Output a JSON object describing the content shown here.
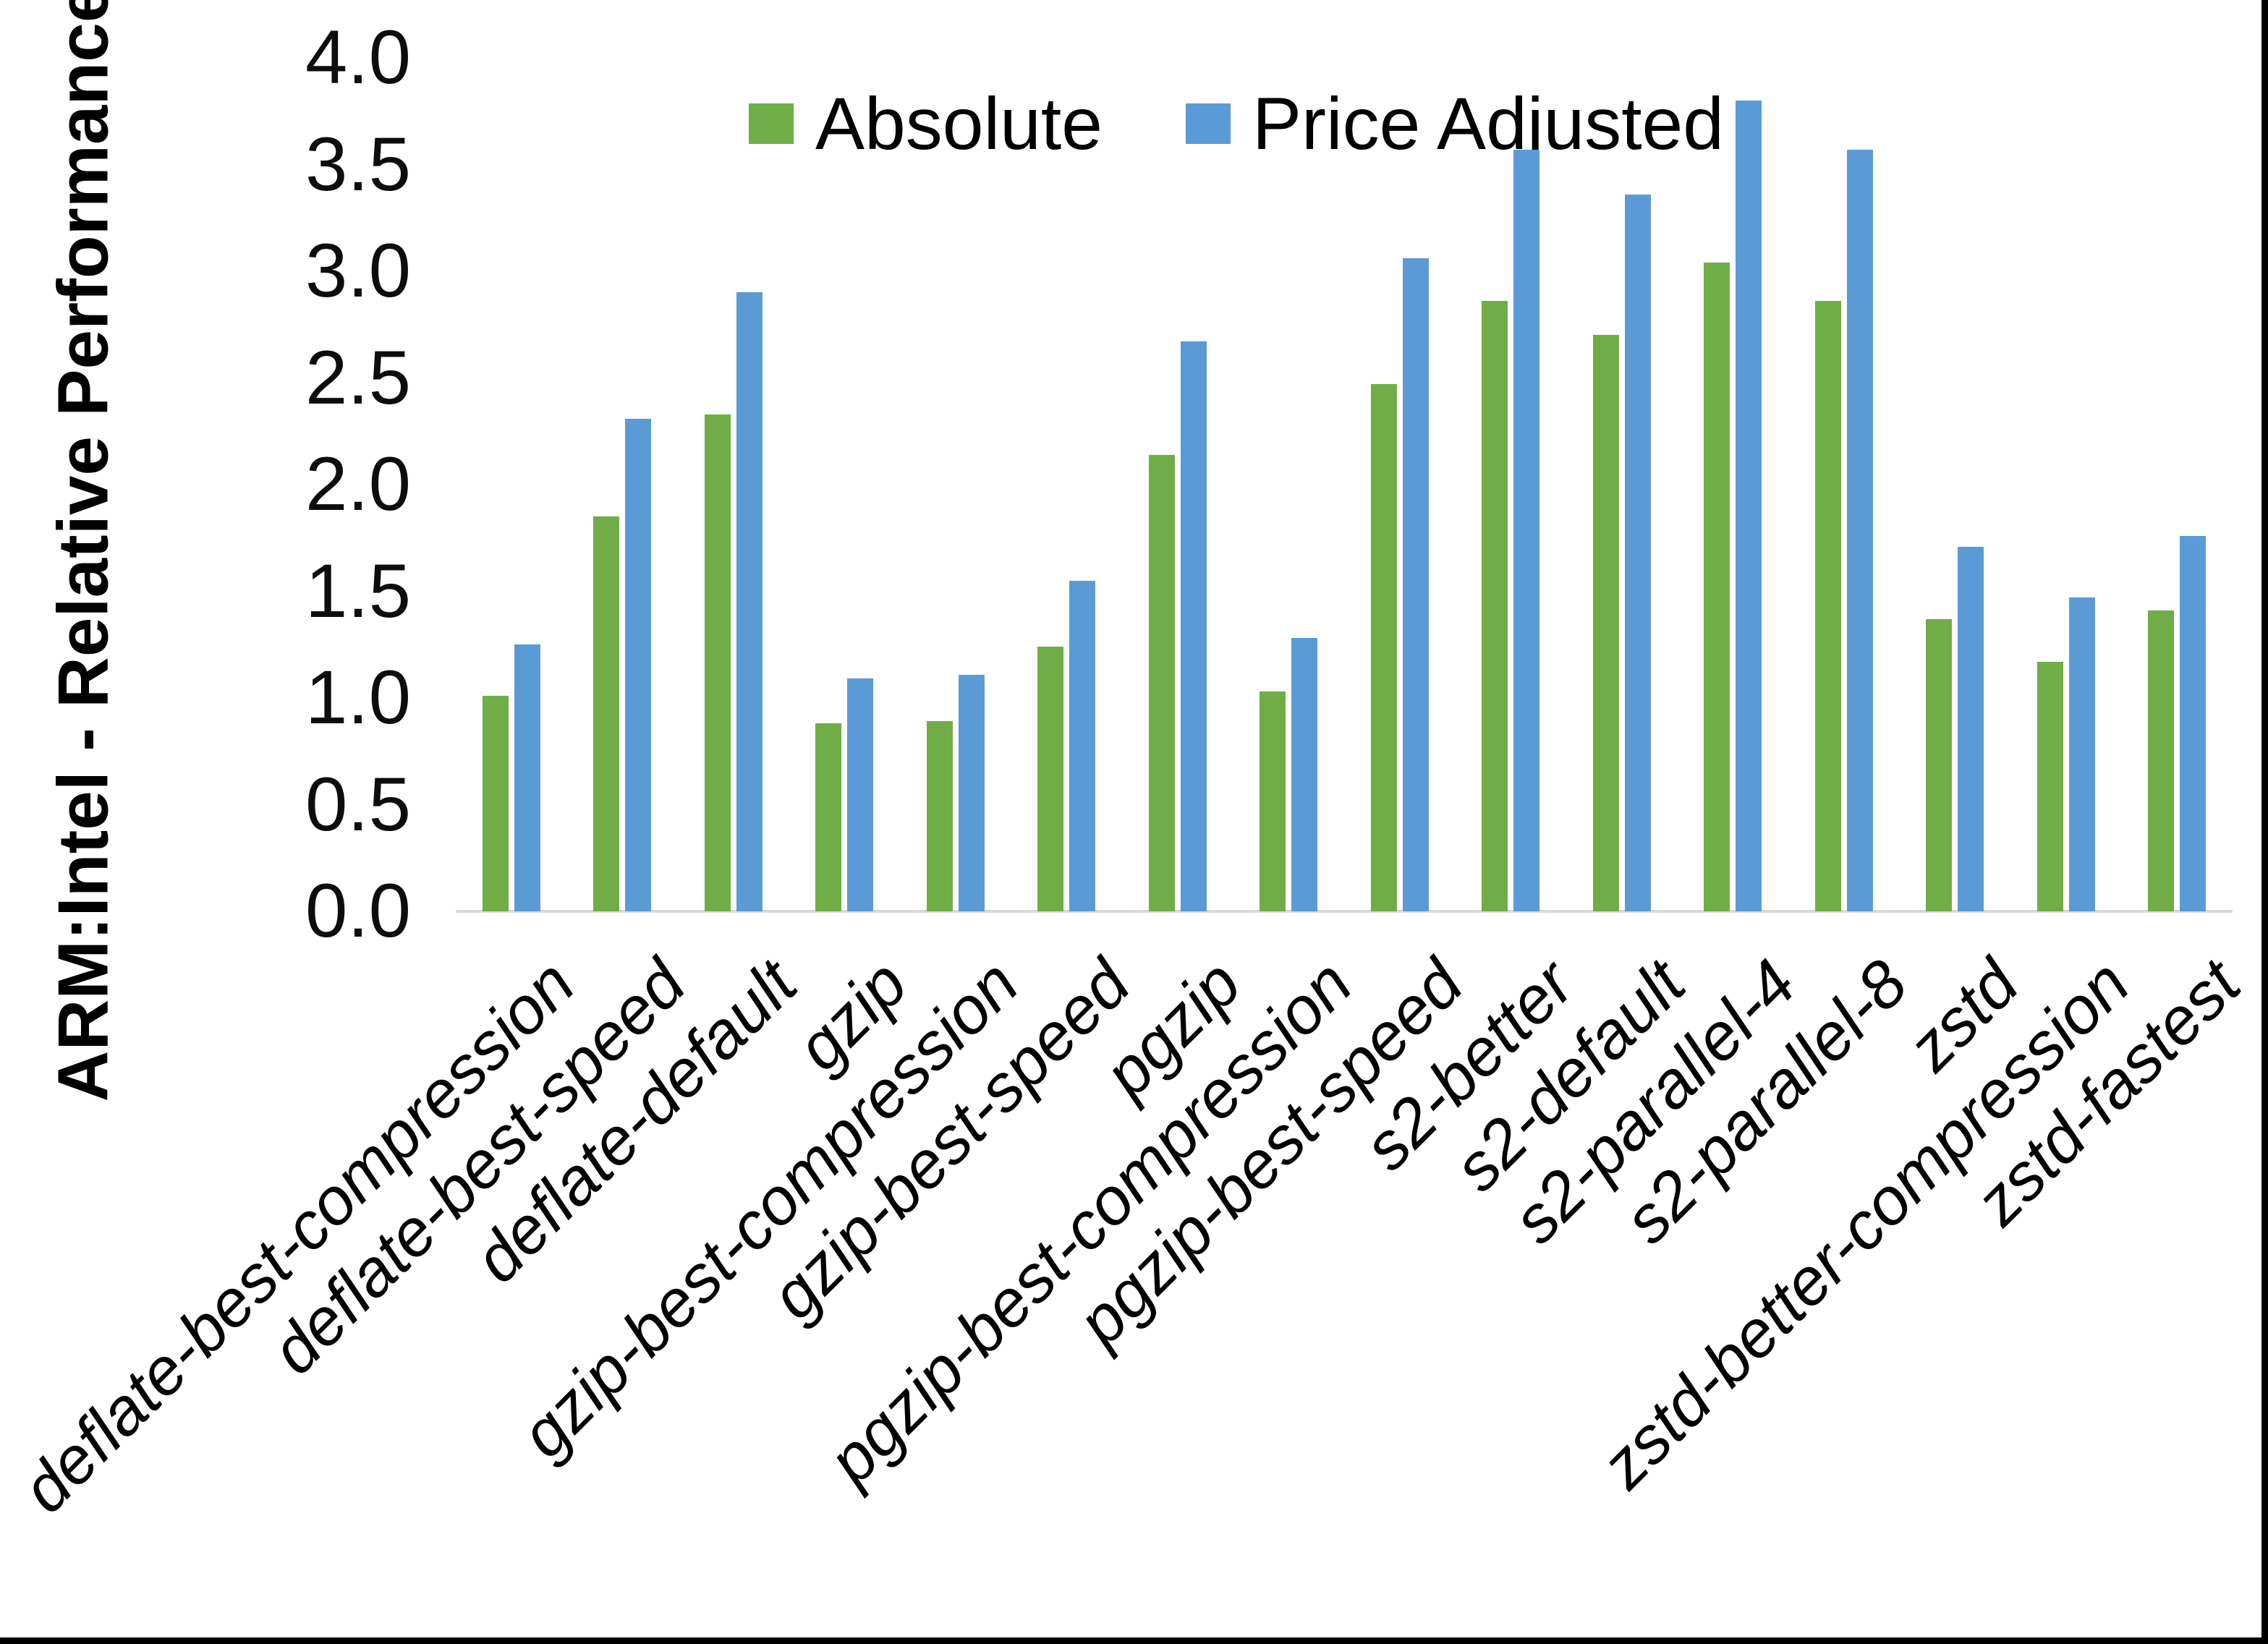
{
  "y_axis": {
    "title": "ARM:Intel - Relative Performance",
    "tick_labels": [
      "4.0",
      "3.5",
      "3.0",
      "2.5",
      "2.0",
      "1.5",
      "1.0",
      "0.5",
      "0.0"
    ]
  },
  "legend": {
    "items": [
      {
        "label": "Absolute",
        "color": "#70AD47"
      },
      {
        "label": "Price Adjusted",
        "color": "#5B9BD5"
      }
    ]
  },
  "colors": {
    "absolute_green": "#70AD47",
    "price_adjusted_blue": "#5B9BD5",
    "axis_line_gray": "#D8D8D8",
    "border_black": "#000000"
  },
  "chart_data": {
    "type": "bar",
    "title": "",
    "xlabel": "",
    "ylabel": "ARM:Intel - Relative Performance",
    "ylim": [
      0.0,
      4.0
    ],
    "ytick_step": 0.5,
    "grid": false,
    "legend_position": "top-center",
    "categories": [
      "deflate-best-compression",
      "deflate-best-speed",
      "deflate-default",
      "gzip",
      "gzip-best-compression",
      "gzip-best-speed",
      "pgzip",
      "pgzip-best-compression",
      "pgzip-best-speed",
      "s2-better",
      "s2-default",
      "s2-parallel-4",
      "s2-parallel-8",
      "zstd",
      "zstd-better-compression",
      "zstd-fastest"
    ],
    "series": [
      {
        "name": "Absolute",
        "color": "#70AD47",
        "values": [
          1.01,
          1.85,
          2.33,
          0.88,
          0.89,
          1.24,
          2.14,
          1.03,
          2.47,
          2.86,
          2.7,
          3.04,
          2.86,
          1.37,
          1.17,
          1.41
        ]
      },
      {
        "name": "Price Adjusted",
        "color": "#5B9BD5",
        "values": [
          1.25,
          2.31,
          2.9,
          1.09,
          1.11,
          1.55,
          2.67,
          1.28,
          3.06,
          3.57,
          3.36,
          3.8,
          3.57,
          1.71,
          1.47,
          1.76
        ]
      }
    ]
  }
}
